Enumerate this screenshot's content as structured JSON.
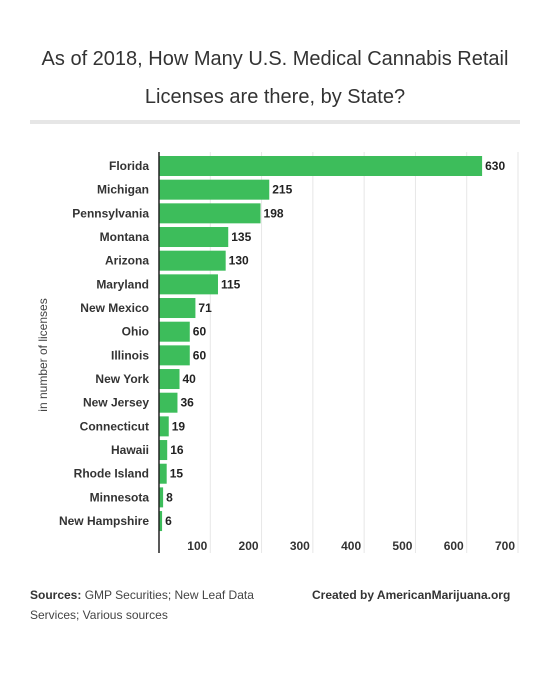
{
  "title": "As of 2018, How Many U.S. Medical Cannabis Retail Licenses are there, by State?",
  "footer": {
    "sources_label": "Sources:",
    "sources_text": " GMP Securities; New Leaf Data Services; Various sources",
    "credit": "Created by AmericanMarijuana.org"
  },
  "chart_data": {
    "type": "bar",
    "orientation": "horizontal",
    "title": "As of 2018, How Many U.S. Medical Cannabis Retail Licenses are there, by State?",
    "ylabel": "in number of licenses",
    "categories": [
      "Florida",
      "Michigan",
      "Pennsylvania",
      "Montana",
      "Arizona",
      "Maryland",
      "New Mexico",
      "Ohio",
      "Illinois",
      "New York",
      "New Jersey",
      "Connecticut",
      "Hawaii",
      "Rhode Island",
      "Minnesota",
      "New Hampshire"
    ],
    "values": [
      630,
      215,
      198,
      135,
      130,
      115,
      71,
      60,
      60,
      40,
      36,
      19,
      16,
      15,
      8,
      6
    ],
    "xlim": [
      0,
      700
    ],
    "xticks": [
      100,
      200,
      300,
      400,
      500,
      600,
      700
    ],
    "grid": true,
    "bar_color": "#3dbd5b"
  }
}
